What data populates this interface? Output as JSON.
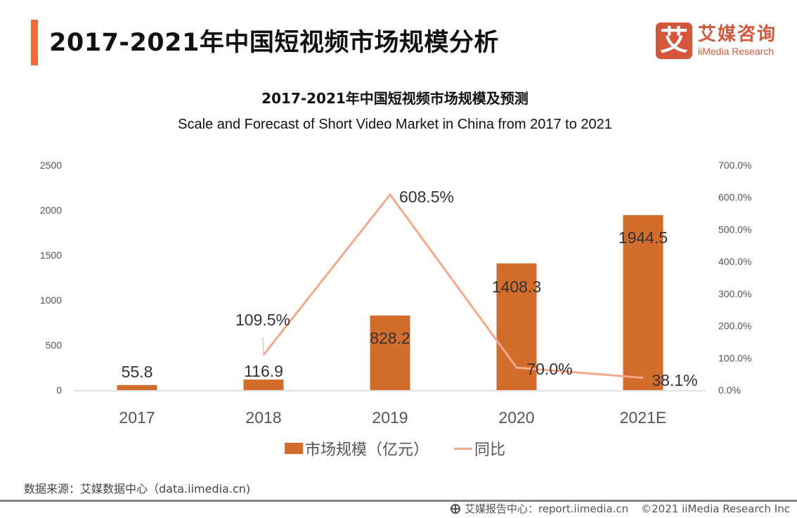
{
  "header": {
    "title": "2017-2021年中国短视频市场规模分析",
    "logo_mark": "艾",
    "logo_cn": "艾媒咨询",
    "logo_en": "iiMedia Research"
  },
  "colors": {
    "accent": "#f26a3a",
    "brand": "#d5573b",
    "bar": "#d36d2b",
    "line": "#f3a98c"
  },
  "chart_data": {
    "type": "bar+line",
    "title": "2017-2021年中国短视频市场规模及预测",
    "subtitle": "Scale and Forecast of Short Video Market in China from 2017 to 2021",
    "categories": [
      "2017",
      "2018",
      "2019",
      "2020",
      "2021E"
    ],
    "series": [
      {
        "name": "市场规模（亿元）",
        "type": "bar",
        "axis": "left",
        "values": [
          55.8,
          116.9,
          828.2,
          1408.3,
          1944.5
        ],
        "labels": [
          "55.8",
          "116.9",
          "828.2",
          "1408.3",
          "1944.5"
        ]
      },
      {
        "name": "同比",
        "type": "line",
        "axis": "right",
        "values": [
          null,
          109.5,
          608.5,
          70.0,
          38.1
        ],
        "labels": [
          "",
          "109.5%",
          "608.5%",
          "70.0%",
          "38.1%"
        ]
      }
    ],
    "y_left": {
      "min": 0,
      "max": 2500,
      "ticks": [
        "0",
        "500",
        "1000",
        "1500",
        "2000",
        "2500"
      ]
    },
    "y_right": {
      "min": 0,
      "max": 700,
      "ticks": [
        "0.0%",
        "100.0%",
        "200.0%",
        "300.0%",
        "400.0%",
        "500.0%",
        "600.0%",
        "700.0%"
      ]
    },
    "grid": false,
    "legend": "bottom-center"
  },
  "legend": {
    "bar_label": "市场规模（亿元）",
    "line_label": "同比"
  },
  "footer": {
    "source": "数据来源：艾媒数据中心（data.iimedia.cn)",
    "report": "艾媒报告中心：report.iimedia.cn",
    "copyright": "©2021  iiMedia Research  Inc"
  }
}
